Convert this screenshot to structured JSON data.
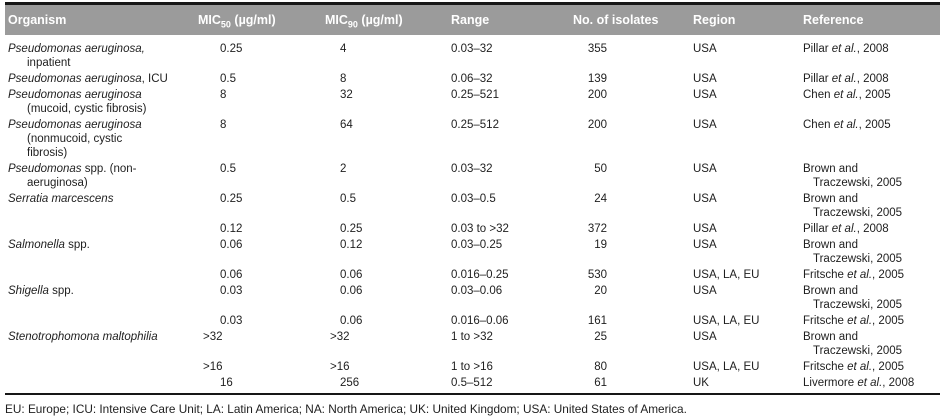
{
  "table": {
    "headers": [
      {
        "key": "organism",
        "text": "Organism"
      },
      {
        "key": "mic50",
        "text": "MIC",
        "sub": "50",
        "post": " (µg/ml)"
      },
      {
        "key": "mic90",
        "text": "MIC",
        "sub": "90",
        "post": " (µg/ml)"
      },
      {
        "key": "range",
        "text": "Range"
      },
      {
        "key": "isolates",
        "text": "No. of isolates"
      },
      {
        "key": "region",
        "text": "Region"
      },
      {
        "key": "reference",
        "text": "Reference"
      }
    ],
    "rows": [
      {
        "organism": [
          [
            {
              "t": "Pseudomonas aeruginosa,",
              "i": true
            }
          ],
          [
            {
              "t": "inpatient",
              "i": false
            }
          ]
        ],
        "mic50": "0.25",
        "mic90": "4",
        "range": "0.03–32",
        "isolates": "355",
        "region": "USA",
        "reference": [
          [
            {
              "t": "Pillar ",
              "i": false
            },
            {
              "t": "et al.",
              "i": true
            },
            {
              "t": ", 2008",
              "i": false
            }
          ]
        ]
      },
      {
        "organism": [
          [
            {
              "t": "Pseudomonas aeruginosa",
              "i": true
            },
            {
              "t": ", ICU",
              "i": false
            }
          ]
        ],
        "mic50": "0.5",
        "mic90": "8",
        "range": "0.06–32",
        "isolates": "139",
        "region": "USA",
        "reference": [
          [
            {
              "t": "Pillar ",
              "i": false
            },
            {
              "t": "et al.",
              "i": true
            },
            {
              "t": ", 2008",
              "i": false
            }
          ]
        ]
      },
      {
        "organism": [
          [
            {
              "t": "Pseudomonas aeruginosa",
              "i": true
            }
          ],
          [
            {
              "t": "(mucoid, cystic fibrosis)",
              "i": false
            }
          ]
        ],
        "mic50": "8",
        "mic90": "32",
        "range": "0.25–521",
        "isolates": "200",
        "region": "USA",
        "reference": [
          [
            {
              "t": "Chen ",
              "i": false
            },
            {
              "t": "et al.",
              "i": true
            },
            {
              "t": ", 2005",
              "i": false
            }
          ]
        ]
      },
      {
        "organism": [
          [
            {
              "t": "Pseudomonas aeruginosa",
              "i": true
            }
          ],
          [
            {
              "t": "(nonmucoid, cystic",
              "i": false
            }
          ],
          [
            {
              "t": "fibrosis)",
              "i": false
            }
          ]
        ],
        "mic50": "8",
        "mic90": "64",
        "range": "0.25–512",
        "isolates": "200",
        "region": "USA",
        "reference": [
          [
            {
              "t": "Chen ",
              "i": false
            },
            {
              "t": "et al.",
              "i": true
            },
            {
              "t": ", 2005",
              "i": false
            }
          ]
        ]
      },
      {
        "organism": [
          [
            {
              "t": "Pseudomonas",
              "i": true
            },
            {
              "t": " spp. (non-",
              "i": false
            }
          ],
          [
            {
              "t": "aeruginosa)",
              "i": false
            }
          ]
        ],
        "mic50": "0.5",
        "mic90": "2",
        "range": "0.03–32",
        "isolates": "50",
        "region": "USA",
        "reference": [
          [
            {
              "t": "Brown and",
              "i": false
            }
          ],
          [
            {
              "t": "Traczewski, 2005",
              "i": false
            }
          ]
        ]
      },
      {
        "organism": [
          [
            {
              "t": "Serratia marcescens",
              "i": true
            }
          ]
        ],
        "mic50": "0.25",
        "mic90": "0.5",
        "range": "0.03–0.5",
        "isolates": "24",
        "region": "USA",
        "reference": [
          [
            {
              "t": "Brown and",
              "i": false
            }
          ],
          [
            {
              "t": "Traczewski, 2005",
              "i": false
            }
          ]
        ]
      },
      {
        "organism": [],
        "mic50": "0.12",
        "mic90": "0.25",
        "range": "0.03 to >32",
        "isolates": "372",
        "region": "USA",
        "reference": [
          [
            {
              "t": "Pillar ",
              "i": false
            },
            {
              "t": "et al.",
              "i": true
            },
            {
              "t": ", 2008",
              "i": false
            }
          ]
        ]
      },
      {
        "organism": [
          [
            {
              "t": "Salmonella",
              "i": true
            },
            {
              "t": " spp.",
              "i": false
            }
          ]
        ],
        "mic50": "0.06",
        "mic90": "0.12",
        "range": "0.03–0.25",
        "isolates": "19",
        "region": "USA",
        "reference": [
          [
            {
              "t": "Brown and",
              "i": false
            }
          ],
          [
            {
              "t": "Traczewski, 2005",
              "i": false
            }
          ]
        ]
      },
      {
        "organism": [],
        "mic50": "0.06",
        "mic90": "0.06",
        "range": "0.016–0.25",
        "isolates": "530",
        "region": "USA, LA, EU",
        "reference": [
          [
            {
              "t": "Fritsche ",
              "i": false
            },
            {
              "t": "et al.",
              "i": true
            },
            {
              "t": ", 2005",
              "i": false
            }
          ]
        ]
      },
      {
        "organism": [
          [
            {
              "t": "Shigella",
              "i": true
            },
            {
              "t": " spp.",
              "i": false
            }
          ]
        ],
        "mic50": "0.03",
        "mic90": "0.06",
        "range": "0.03–0.06",
        "isolates": "20",
        "region": "USA",
        "reference": [
          [
            {
              "t": "Brown and",
              "i": false
            }
          ],
          [
            {
              "t": "Traczewski, 2005",
              "i": false
            }
          ]
        ]
      },
      {
        "organism": [],
        "mic50": "0.03",
        "mic90": "0.06",
        "range": "0.016–0.06",
        "isolates": "161",
        "region": "USA, LA, EU",
        "reference": [
          [
            {
              "t": "Fritsche ",
              "i": false
            },
            {
              "t": "et al.",
              "i": true
            },
            {
              "t": ", 2005",
              "i": false
            }
          ]
        ]
      },
      {
        "organism": [
          [
            {
              "t": "Stenotrophomona maltophilia",
              "i": true
            }
          ]
        ],
        "mic50": ">32",
        "mic90": ">32",
        "range": "1 to >32",
        "isolates": "25",
        "region": "USA",
        "reference": [
          [
            {
              "t": "Brown and",
              "i": false
            }
          ],
          [
            {
              "t": "Traczewski, 2005",
              "i": false
            }
          ]
        ]
      },
      {
        "organism": [],
        "mic50": ">16",
        "mic90": ">16",
        "range": "1 to >16",
        "isolates": "80",
        "region": "USA, LA, EU",
        "reference": [
          [
            {
              "t": "Fritsche ",
              "i": false
            },
            {
              "t": "et al.",
              "i": true
            },
            {
              "t": ", 2005",
              "i": false
            }
          ]
        ]
      },
      {
        "organism": [],
        "mic50": "16",
        "mic90": "256",
        "range": "0.5–512",
        "isolates": "61",
        "region": "UK",
        "reference": [
          [
            {
              "t": "Livermore ",
              "i": false
            },
            {
              "t": "et al.",
              "i": true
            },
            {
              "t": ", 2008",
              "i": false
            }
          ]
        ]
      }
    ]
  },
  "colors": {
    "header_bg": "#9b9b9b",
    "header_text": "#ffffff",
    "rule": "#171717",
    "body_text": "#1e1e1e"
  },
  "footnote": "EU: Europe; ICU: Intensive Care Unit; LA: Latin America; NA: North America; UK: United Kingdom; USA: United States of America."
}
